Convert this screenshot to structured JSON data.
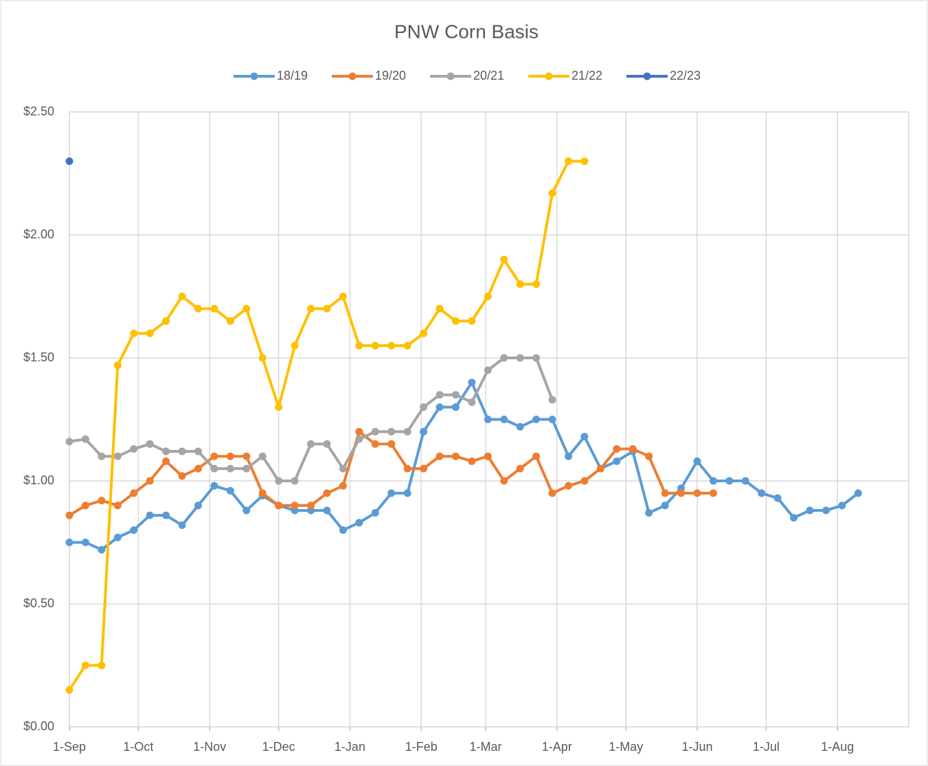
{
  "chart_data": {
    "type": "line",
    "title": "PNW Corn Basis",
    "x": [
      0,
      7,
      14,
      21,
      28,
      35,
      42,
      49,
      56,
      63,
      70,
      77,
      84,
      91,
      98,
      105,
      112,
      119,
      126,
      133,
      140,
      147,
      154,
      161,
      168,
      175,
      182,
      189,
      196,
      203,
      210,
      217,
      224,
      231,
      238,
      245,
      252,
      259,
      266,
      273,
      280,
      287,
      294,
      301,
      308,
      315,
      322,
      329,
      336,
      343
    ],
    "xlim": [
      0,
      365
    ],
    "xticks": [
      {
        "value": 0,
        "label": "1-Sep"
      },
      {
        "value": 30,
        "label": "1-Oct"
      },
      {
        "value": 61,
        "label": "1-Nov"
      },
      {
        "value": 91,
        "label": "1-Dec"
      },
      {
        "value": 122,
        "label": "1-Jan"
      },
      {
        "value": 153,
        "label": "1-Feb"
      },
      {
        "value": 181,
        "label": "1-Mar"
      },
      {
        "value": 212,
        "label": "1-Apr"
      },
      {
        "value": 242,
        "label": "1-May"
      },
      {
        "value": 273,
        "label": "1-Jun"
      },
      {
        "value": 303,
        "label": "1-Jul"
      },
      {
        "value": 334,
        "label": "1-Aug"
      }
    ],
    "ylim": [
      0,
      2.5
    ],
    "yticks": [
      {
        "value": 0,
        "label": "$0.00"
      },
      {
        "value": 0.5,
        "label": "$0.50"
      },
      {
        "value": 1,
        "label": "$1.00"
      },
      {
        "value": 1.5,
        "label": "$1.50"
      },
      {
        "value": 2,
        "label": "$2.00"
      },
      {
        "value": 2.5,
        "label": "$2.50"
      }
    ],
    "grid": true,
    "legend": "top",
    "series": [
      {
        "name": "18/19",
        "color": "#5b9bd5",
        "values": [
          0.75,
          0.75,
          0.72,
          0.77,
          0.8,
          0.86,
          0.86,
          0.82,
          0.9,
          0.98,
          0.96,
          0.88,
          0.94,
          0.9,
          0.88,
          0.88,
          0.88,
          0.8,
          0.83,
          0.87,
          0.95,
          0.95,
          1.2,
          1.3,
          1.3,
          1.4,
          1.25,
          1.25,
          1.22,
          1.25,
          1.25,
          1.1,
          1.18,
          1.05,
          1.08,
          1.12,
          0.87,
          0.9,
          0.97,
          1.08,
          1.0,
          1.0,
          1.0,
          0.95,
          0.93,
          0.85,
          0.88,
          0.88,
          0.9,
          0.95
        ]
      },
      {
        "name": "19/20",
        "color": "#ed7d31",
        "values": [
          0.86,
          0.9,
          0.92,
          0.9,
          0.95,
          1.0,
          1.08,
          1.02,
          1.05,
          1.1,
          1.1,
          1.1,
          0.95,
          0.9,
          0.9,
          0.9,
          0.95,
          0.98,
          1.2,
          1.15,
          1.15,
          1.05,
          1.05,
          1.1,
          1.1,
          1.08,
          1.1,
          1.0,
          1.05,
          1.1,
          0.95,
          0.98,
          1.0,
          1.05,
          1.13,
          1.13,
          1.1,
          0.95,
          0.95,
          0.95,
          0.95,
          null,
          null,
          null,
          null,
          null,
          null,
          null,
          null,
          null
        ]
      },
      {
        "name": "20/21",
        "color": "#a5a5a5",
        "values": [
          1.16,
          1.17,
          1.1,
          1.1,
          1.13,
          1.15,
          1.12,
          1.12,
          1.12,
          1.05,
          1.05,
          1.05,
          1.1,
          1.0,
          1.0,
          1.15,
          1.15,
          1.05,
          1.17,
          1.2,
          1.2,
          1.2,
          1.3,
          1.35,
          1.35,
          1.32,
          1.45,
          1.5,
          1.5,
          1.5,
          1.33,
          null,
          null,
          null,
          null,
          null,
          null,
          null,
          null,
          null,
          null,
          null,
          null,
          null,
          null,
          null,
          null,
          null,
          null,
          null
        ]
      },
      {
        "name": "21/22",
        "color": "#ffc000",
        "values": [
          0.15,
          0.25,
          0.25,
          1.47,
          1.6,
          1.6,
          1.65,
          1.75,
          1.7,
          1.7,
          1.65,
          1.7,
          1.5,
          1.3,
          1.55,
          1.7,
          1.7,
          1.75,
          1.55,
          1.55,
          1.55,
          1.55,
          1.6,
          1.7,
          1.65,
          1.65,
          1.75,
          1.9,
          1.8,
          1.8,
          2.17,
          2.3,
          2.3,
          null,
          null,
          null,
          null,
          null,
          null,
          null,
          null,
          null,
          null,
          null,
          null,
          null,
          null,
          null,
          null,
          null
        ]
      },
      {
        "name": "22/23",
        "color": "#4472c4",
        "values": [
          2.3,
          null,
          null,
          null,
          null,
          null,
          null,
          null,
          null,
          null,
          null,
          null,
          null,
          null,
          null,
          null,
          null,
          null,
          null,
          null,
          null,
          null,
          null,
          null,
          null,
          null,
          null,
          null,
          null,
          null,
          null,
          null,
          null,
          null,
          null,
          null,
          null,
          null,
          null,
          null,
          null,
          null,
          null,
          null,
          null,
          null,
          null,
          null,
          null,
          null
        ]
      }
    ]
  }
}
